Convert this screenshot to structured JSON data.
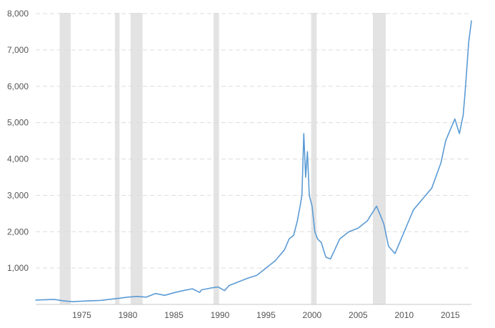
{
  "chart_data": {
    "type": "line",
    "title": "",
    "xlabel": "",
    "ylabel": "",
    "xlim": [
      1970.0,
      2017.3
    ],
    "ylim": [
      0,
      8000
    ],
    "grid": "horizontal-dashed",
    "series_color": "#5b9bd5",
    "shade_color": "#e3e3e3",
    "x_ticks": [
      1975,
      1980,
      1985,
      1990,
      1995,
      2000,
      2005,
      2010,
      2015
    ],
    "y_ticks": [
      {
        "value": 1000,
        "label": "1,000"
      },
      {
        "value": 2000,
        "label": "2,000"
      },
      {
        "value": 3000,
        "label": "3,000"
      },
      {
        "value": 4000,
        "label": "4,000"
      },
      {
        "value": 5000,
        "label": "5,000"
      },
      {
        "value": 6000,
        "label": "6,000"
      },
      {
        "value": 7000,
        "label": "7,000"
      },
      {
        "value": 8000,
        "label": "8,000"
      }
    ],
    "recessions": [
      [
        1972.6,
        1973.8
      ],
      [
        1978.6,
        1979.1
      ],
      [
        1980.3,
        1981.6
      ],
      [
        1989.3,
        1989.9
      ],
      [
        1999.9,
        2000.5
      ],
      [
        2006.6,
        2008.0
      ]
    ],
    "series": [
      {
        "x": [
          1970.0,
          1971.0,
          1972.0,
          1973.0,
          1974.0,
          1975.0,
          1976.0,
          1977.0,
          1978.0,
          1979.0,
          1980.0,
          1981.0,
          1982.0,
          1983.0,
          1984.0,
          1985.0,
          1986.0,
          1987.0,
          1987.8,
          1988.0,
          1989.0,
          1989.8,
          1990.5,
          1991.0,
          1992.0,
          1993.0,
          1994.0,
          1995.0,
          1996.0,
          1997.0,
          1997.5,
          1998.0,
          1998.4,
          1998.7,
          1998.9,
          1999.1,
          1999.3,
          1999.5,
          1999.7,
          2000.0,
          2000.3,
          2000.6,
          2001.0,
          2001.5,
          2002.0,
          2003.0,
          2004.0,
          2005.0,
          2006.0,
          2006.5,
          2007.0,
          2007.5,
          2007.8,
          2008.3,
          2009.0,
          2010.0,
          2010.5,
          2011.0,
          2012.0,
          2013.0,
          2014.0,
          2014.5,
          2015.0,
          2015.5,
          2016.0,
          2016.4,
          2016.6,
          2016.8,
          2017.0,
          2017.3
        ],
        "values": [
          120,
          130,
          135,
          100,
          75,
          90,
          100,
          110,
          140,
          170,
          200,
          220,
          200,
          300,
          250,
          320,
          380,
          430,
          330,
          400,
          450,
          480,
          380,
          520,
          620,
          720,
          800,
          1000,
          1200,
          1500,
          1800,
          1900,
          2300,
          2700,
          3000,
          4700,
          3500,
          4200,
          3000,
          2700,
          2000,
          1800,
          1700,
          1300,
          1250,
          1800,
          2000,
          2100,
          2300,
          2500,
          2700,
          2400,
          2200,
          1600,
          1400,
          2000,
          2300,
          2600,
          2900,
          3200,
          3900,
          4500,
          4800,
          5100,
          4700,
          5200,
          5800,
          6500,
          7200,
          7800
        ]
      }
    ]
  }
}
